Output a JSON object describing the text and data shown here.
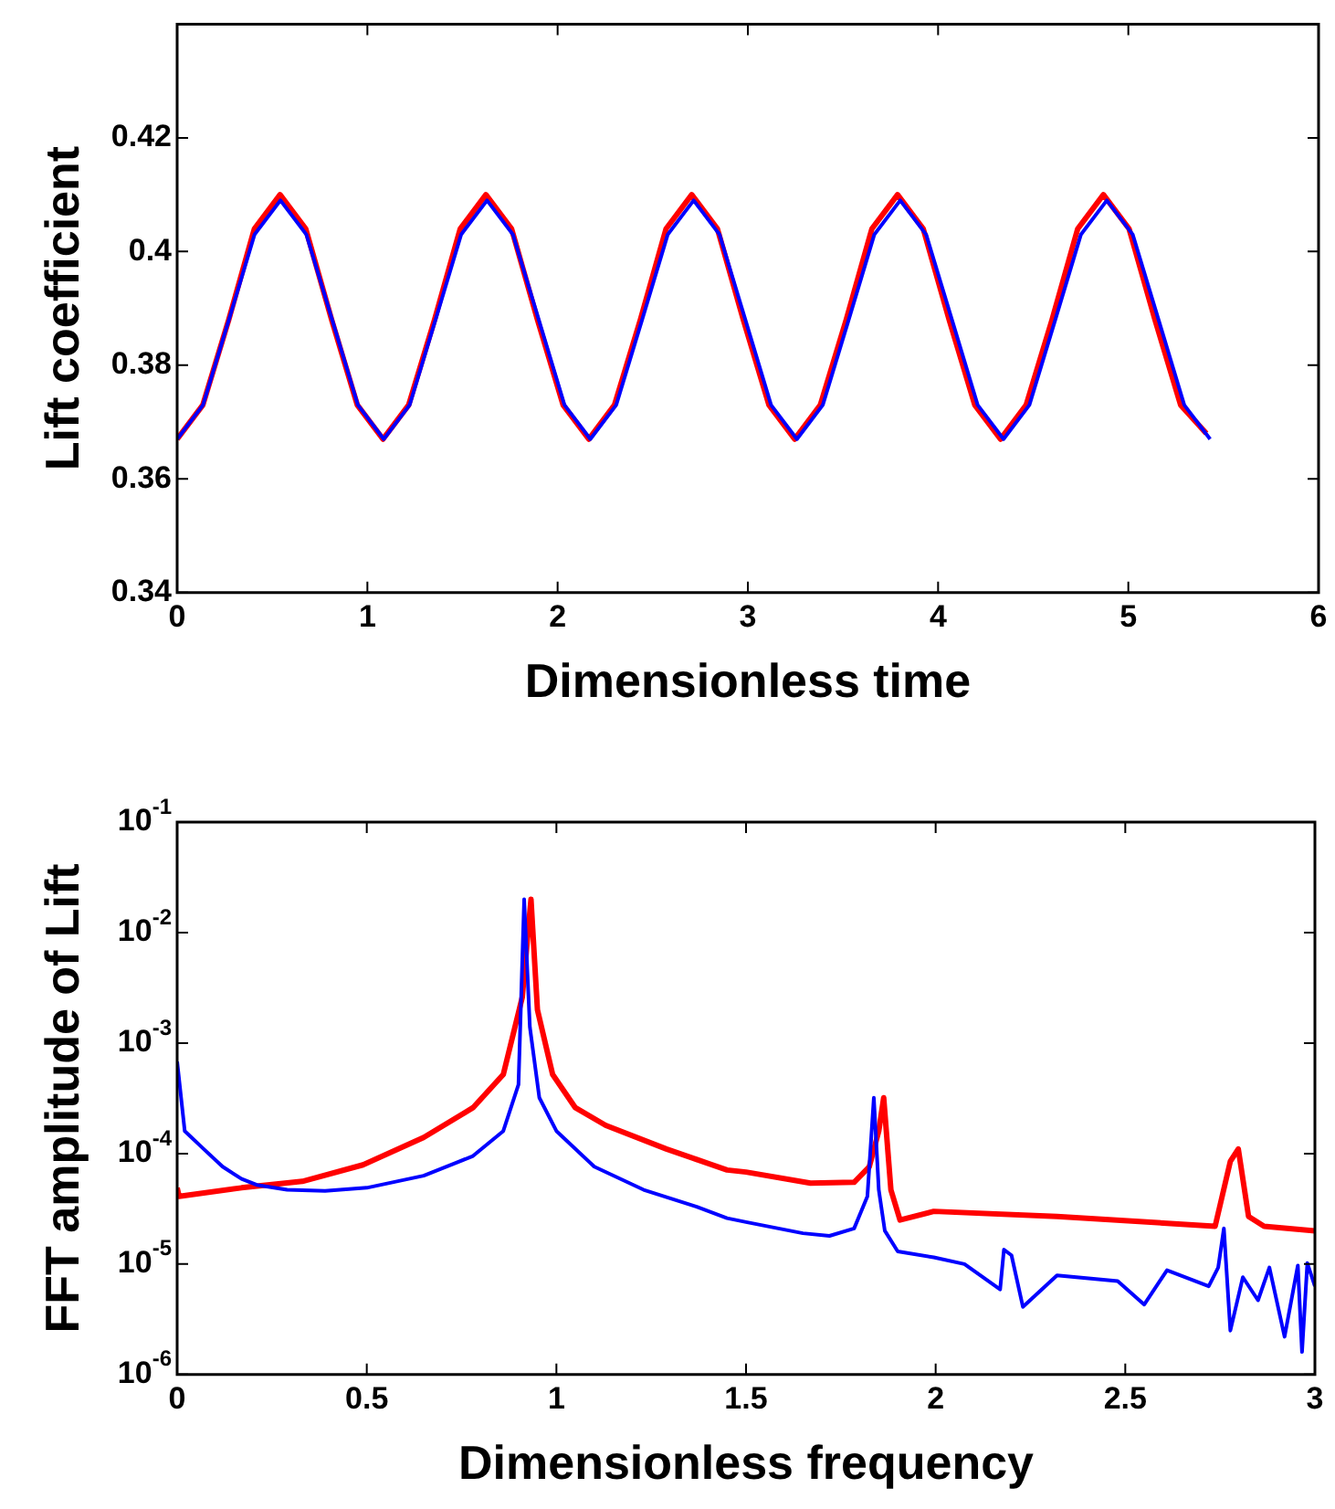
{
  "chart_data": [
    {
      "type": "line",
      "xlabel": "Dimensionless time",
      "ylabel": "Lift coefficient",
      "xlim": [
        0,
        6
      ],
      "xticks": [
        0,
        1,
        2,
        3,
        4,
        5,
        6
      ],
      "ylim": [
        0.34,
        0.44
      ],
      "yticks": [
        0.34,
        0.36,
        0.38,
        0.4,
        0.42
      ],
      "series": [
        {
          "color": "#0000ff",
          "x": [
            0,
            0.136,
            0.272,
            0.407,
            0.543,
            0.679,
            0.815,
            0.95,
            1.086,
            1.222,
            1.358,
            1.493,
            1.629,
            1.765,
            1.901,
            2.036,
            2.172,
            2.308,
            2.444,
            2.579,
            2.715,
            2.851,
            2.987,
            3.122,
            3.258,
            3.394,
            3.53,
            3.665,
            3.801,
            3.937,
            4.073,
            4.208,
            4.344,
            4.48,
            4.616,
            4.751,
            4.887,
            5.023,
            5.159,
            5.294,
            5.43
          ],
          "values": [
            0.367,
            0.373,
            0.388,
            0.403,
            0.409,
            0.403,
            0.388,
            0.373,
            0.367,
            0.373,
            0.388,
            0.403,
            0.409,
            0.403,
            0.388,
            0.373,
            0.367,
            0.373,
            0.388,
            0.403,
            0.409,
            0.403,
            0.388,
            0.373,
            0.367,
            0.373,
            0.388,
            0.403,
            0.409,
            0.403,
            0.388,
            0.373,
            0.367,
            0.373,
            0.388,
            0.403,
            0.409,
            0.403,
            0.388,
            0.373,
            0.367
          ]
        },
        {
          "color": "#ff0000",
          "x": [
            0,
            0.135,
            0.271,
            0.406,
            0.541,
            0.676,
            0.812,
            0.947,
            1.082,
            1.217,
            1.353,
            1.488,
            1.623,
            1.758,
            1.894,
            2.029,
            2.164,
            2.299,
            2.435,
            2.57,
            2.705,
            2.84,
            2.976,
            3.111,
            3.246,
            3.381,
            3.517,
            3.652,
            3.787,
            3.922,
            4.058,
            4.193,
            4.328,
            4.463,
            4.599,
            4.734,
            4.869,
            5.004,
            5.14,
            5.275,
            5.41
          ],
          "values": [
            0.367,
            0.373,
            0.388,
            0.404,
            0.41,
            0.404,
            0.388,
            0.373,
            0.367,
            0.373,
            0.388,
            0.404,
            0.41,
            0.404,
            0.388,
            0.373,
            0.367,
            0.373,
            0.388,
            0.404,
            0.41,
            0.404,
            0.388,
            0.373,
            0.367,
            0.373,
            0.388,
            0.404,
            0.41,
            0.404,
            0.388,
            0.373,
            0.367,
            0.373,
            0.388,
            0.404,
            0.41,
            0.404,
            0.388,
            0.373,
            0.368
          ]
        }
      ]
    },
    {
      "type": "line",
      "xlabel": "Dimensionless frequency",
      "ylabel": "FFT amplitude of Lift",
      "log": "y",
      "xlim": [
        0,
        3
      ],
      "xticks": [
        0,
        0.5,
        1,
        1.5,
        2,
        2.5,
        3
      ],
      "ylim": [
        1e-06,
        0.1
      ],
      "yticks": [
        {
          "value": 1e-06,
          "label": "10$^{-6}$"
        },
        {
          "value": 1e-05,
          "label": "10$^{-5}$"
        },
        {
          "value": 0.0001,
          "label": "10$^{-4}$"
        },
        {
          "value": 0.001,
          "label": "10$^{-3}$"
        },
        {
          "value": 0.01,
          "label": "10$^{-2}$"
        },
        {
          "value": 0.1,
          "label": "10$^{-1}$"
        }
      ],
      "series": [
        {
          "color": "#0000ff",
          "x": [
            0,
            0.02,
            0.07,
            0.12,
            0.17,
            0.21,
            0.29,
            0.39,
            0.5,
            0.65,
            0.78,
            0.86,
            0.9,
            0.915,
            0.93,
            0.955,
            1.0,
            1.1,
            1.23,
            1.37,
            1.45,
            1.5,
            1.65,
            1.72,
            1.785,
            1.82,
            1.837,
            1.85,
            1.866,
            1.9,
            1.995,
            2.076,
            2.17,
            2.18,
            2.2,
            2.23,
            2.32,
            2.48,
            2.55,
            2.61,
            2.72,
            2.745,
            2.76,
            2.777,
            2.81,
            2.85,
            2.88,
            2.92,
            2.955,
            2.966,
            2.98,
            3.0
          ],
          "values": [
            0.00068,
            0.00016,
            0.00011,
            7.6e-05,
            5.9e-05,
            5.2e-05,
            4.7e-05,
            4.6e-05,
            4.9e-05,
            6.3e-05,
            9.5e-05,
            0.00016,
            0.00042,
            0.02,
            0.0014,
            0.00032,
            0.00016,
            7.6e-05,
            4.7e-05,
            3.3e-05,
            2.6e-05,
            2.4e-05,
            1.9e-05,
            1.8e-05,
            2.1e-05,
            4.1e-05,
            0.00032,
            4.7e-05,
            2e-05,
            1.3e-05,
            1.15e-05,
            1e-05,
            5.9e-06,
            1.35e-05,
            1.2e-05,
            4.1e-06,
            7.9e-06,
            7e-06,
            4.3e-06,
            8.8e-06,
            6.3e-06,
            9.3e-06,
            2.1e-05,
            2.5e-06,
            7.6e-06,
            4.7e-06,
            9.3e-06,
            2.2e-06,
            9.7e-06,
            1.6e-06,
            1.02e-05,
            6.3e-06
          ]
        },
        {
          "color": "#ff0000",
          "x": [
            0,
            0.005,
            0.17,
            0.33,
            0.49,
            0.65,
            0.78,
            0.86,
            0.91,
            0.933,
            0.95,
            0.99,
            1.05,
            1.13,
            1.29,
            1.45,
            1.5,
            1.67,
            1.785,
            1.825,
            1.85,
            1.863,
            1.882,
            1.906,
            1.995,
            2.32,
            2.737,
            2.777,
            2.798,
            2.825,
            2.866,
            3.0
          ],
          "values": [
            4.9e-05,
            4.1e-05,
            4.9e-05,
            5.6e-05,
            7.9e-05,
            0.00014,
            0.00026,
            0.00052,
            0.0026,
            0.02,
            0.002,
            0.00052,
            0.00026,
            0.00018,
            0.00011,
            7.1e-05,
            6.8e-05,
            5.4e-05,
            5.5e-05,
            7.6e-05,
            0.00016,
            0.00032,
            4.7e-05,
            2.5e-05,
            3e-05,
            2.7e-05,
            2.2e-05,
            8.5e-05,
            0.00011,
            2.7e-05,
            2.2e-05,
            2e-05
          ]
        }
      ]
    }
  ]
}
